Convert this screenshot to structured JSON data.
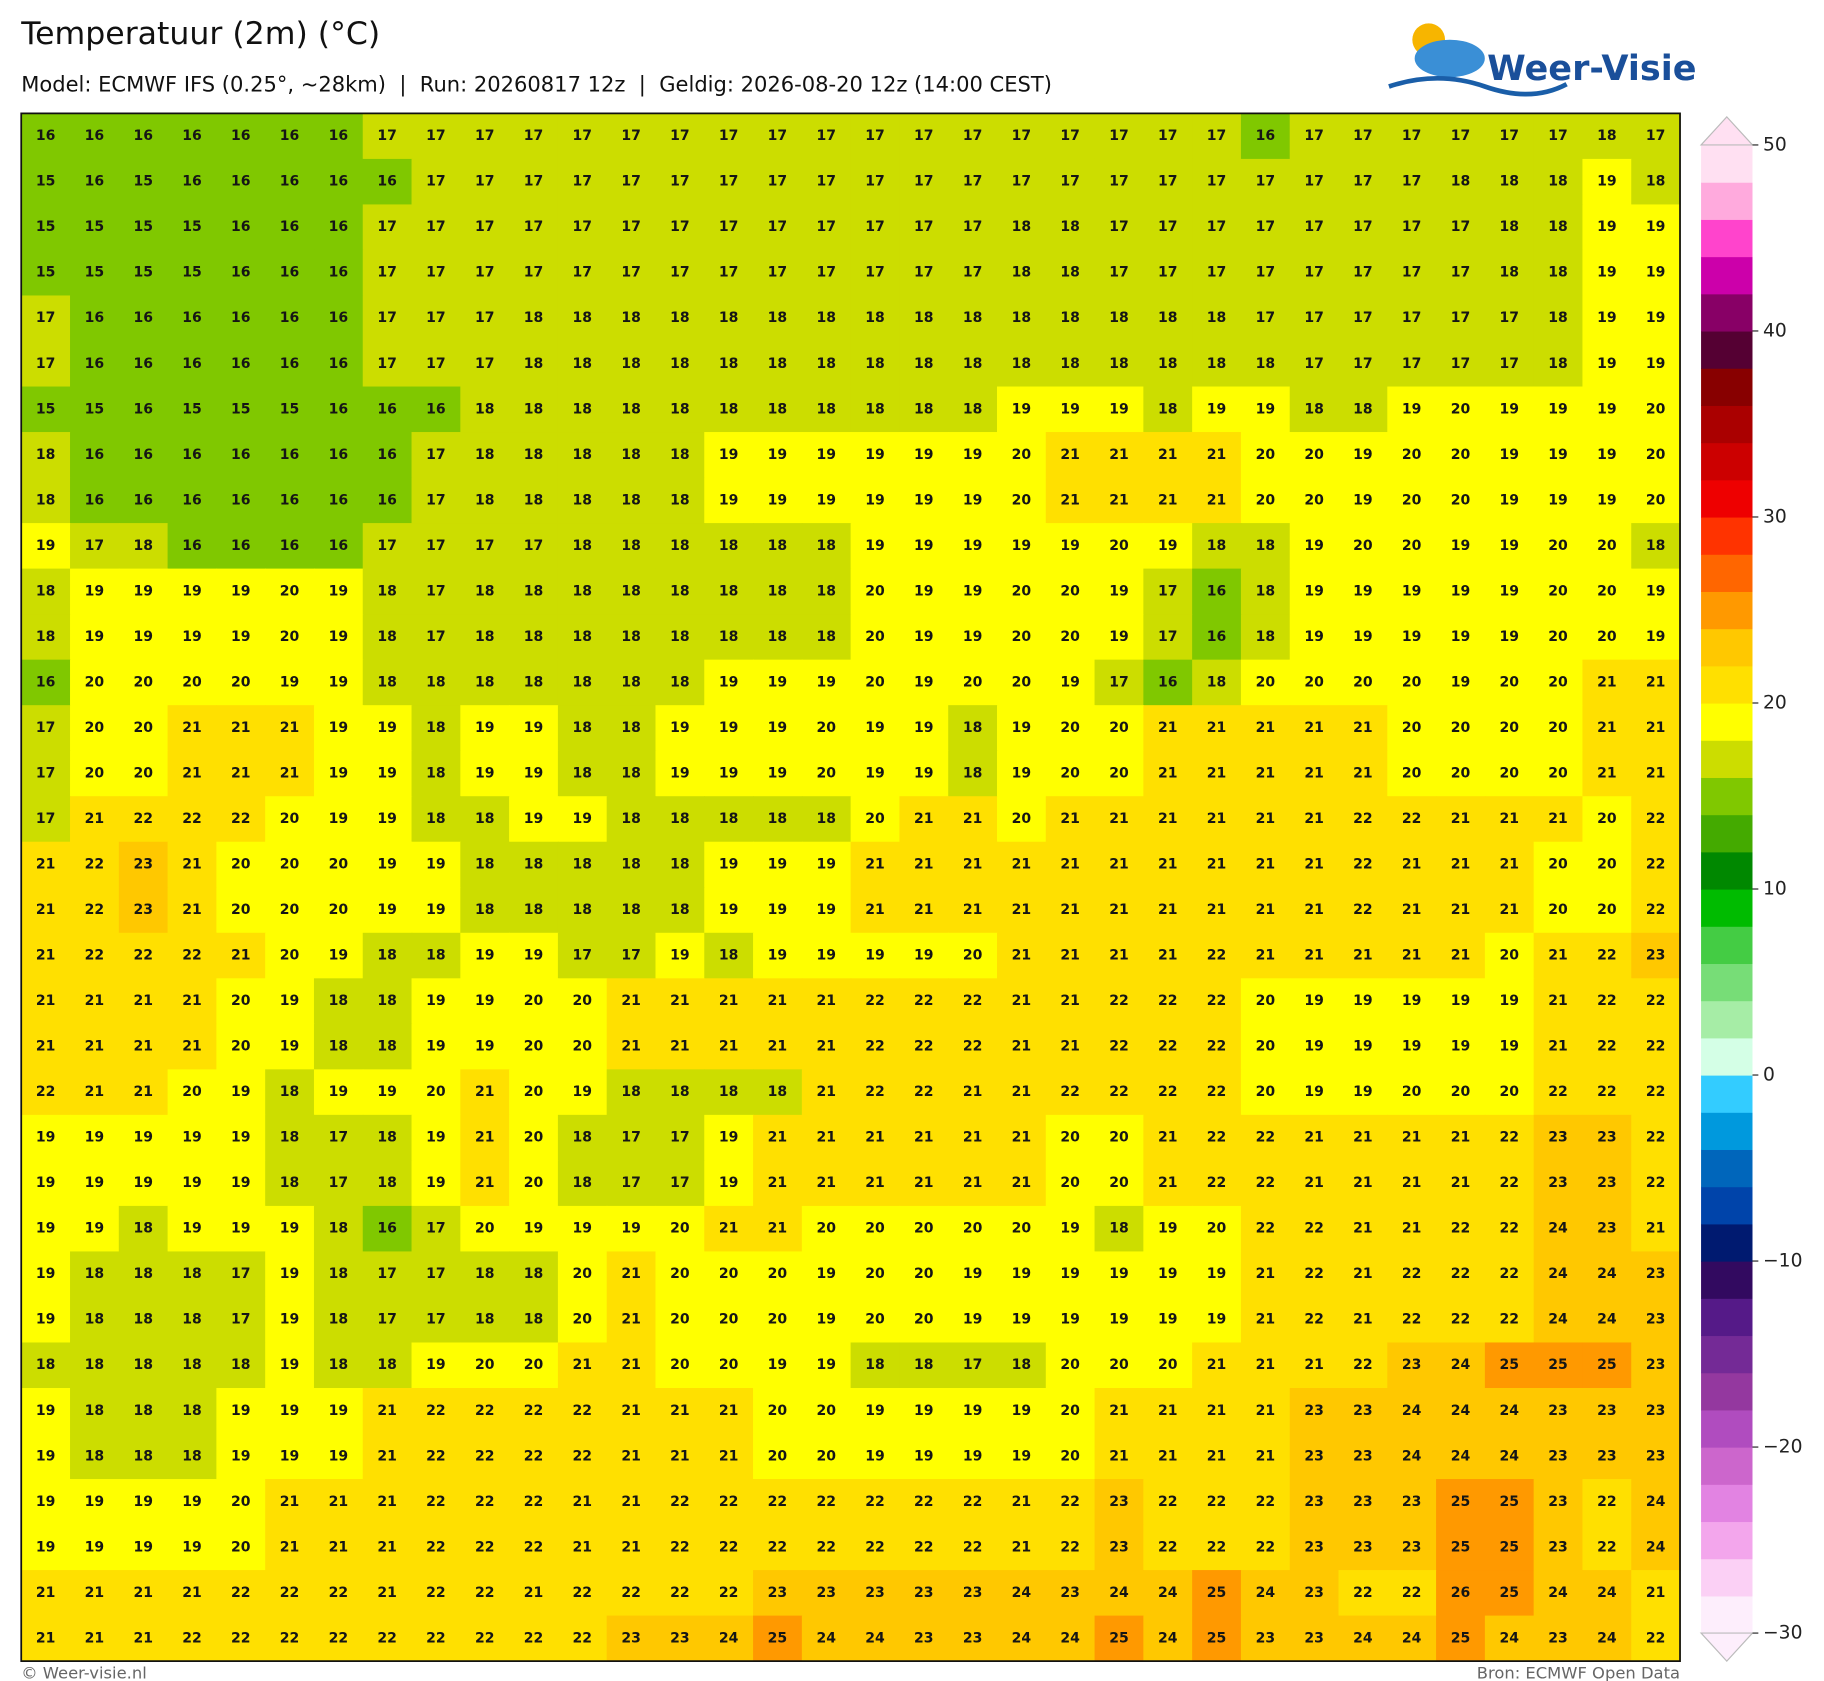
{
  "header": {
    "title": "Temperatuur (2m) (°C)",
    "subtitle": "Model: ECMWF IFS (0.25°, ~28km)  |  Run: 20260817 12z  |  Geldig: 2026-08-20 12z (14:00 CEST)",
    "logo": "Weer-Visie"
  },
  "map": {
    "grid": [
      [
        16,
        16,
        16,
        16,
        16,
        16,
        16,
        17,
        17,
        17,
        17,
        17,
        17,
        17,
        17,
        17,
        17,
        17,
        17,
        17,
        17,
        17,
        17,
        17,
        17,
        16,
        17,
        17,
        17,
        17,
        17,
        17,
        18,
        17
      ],
      [
        15,
        16,
        15,
        16,
        16,
        16,
        16,
        16,
        17,
        17,
        17,
        17,
        17,
        17,
        17,
        17,
        17,
        17,
        17,
        17,
        17,
        17,
        17,
        17,
        17,
        17,
        17,
        17,
        17,
        18,
        18,
        18,
        19,
        18
      ],
      [
        15,
        15,
        15,
        15,
        16,
        16,
        16,
        17,
        17,
        17,
        17,
        17,
        17,
        17,
        17,
        17,
        17,
        17,
        17,
        17,
        18,
        18,
        17,
        17,
        17,
        17,
        17,
        17,
        17,
        17,
        18,
        18,
        19,
        19
      ],
      [
        15,
        15,
        15,
        15,
        16,
        16,
        16,
        17,
        17,
        17,
        17,
        17,
        17,
        17,
        17,
        17,
        17,
        17,
        17,
        17,
        18,
        18,
        17,
        17,
        17,
        17,
        17,
        17,
        17,
        17,
        18,
        18,
        19,
        19
      ],
      [
        17,
        16,
        16,
        16,
        16,
        16,
        16,
        17,
        17,
        17,
        18,
        18,
        18,
        18,
        18,
        18,
        18,
        18,
        18,
        18,
        18,
        18,
        18,
        18,
        18,
        17,
        17,
        17,
        17,
        17,
        17,
        18,
        19,
        19
      ],
      [
        17,
        16,
        16,
        16,
        16,
        16,
        16,
        17,
        17,
        17,
        18,
        18,
        18,
        18,
        18,
        18,
        18,
        18,
        18,
        18,
        18,
        18,
        18,
        18,
        18,
        18,
        17,
        17,
        17,
        17,
        17,
        18,
        19,
        19
      ],
      [
        15,
        15,
        16,
        15,
        15,
        15,
        16,
        16,
        16,
        18,
        18,
        18,
        18,
        18,
        18,
        18,
        18,
        18,
        18,
        18,
        19,
        19,
        19,
        18,
        19,
        19,
        18,
        18,
        19,
        20,
        19,
        19,
        19,
        20
      ],
      [
        18,
        16,
        16,
        16,
        16,
        16,
        16,
        16,
        17,
        18,
        18,
        18,
        18,
        18,
        19,
        19,
        19,
        19,
        19,
        19,
        20,
        21,
        21,
        21,
        21,
        20,
        20,
        19,
        20,
        20,
        19,
        19,
        19,
        20
      ],
      [
        18,
        16,
        16,
        16,
        16,
        16,
        16,
        16,
        17,
        18,
        18,
        18,
        18,
        18,
        19,
        19,
        19,
        19,
        19,
        19,
        20,
        21,
        21,
        21,
        21,
        20,
        20,
        19,
        20,
        20,
        19,
        19,
        19,
        20
      ],
      [
        19,
        17,
        18,
        16,
        16,
        16,
        16,
        17,
        17,
        17,
        17,
        18,
        18,
        18,
        18,
        18,
        18,
        19,
        19,
        19,
        19,
        19,
        20,
        19,
        18,
        18,
        19,
        20,
        20,
        19,
        19,
        20,
        20,
        18
      ],
      [
        18,
        19,
        19,
        19,
        19,
        20,
        19,
        18,
        17,
        18,
        18,
        18,
        18,
        18,
        18,
        18,
        18,
        20,
        19,
        19,
        20,
        20,
        19,
        17,
        16,
        18,
        19,
        19,
        19,
        19,
        19,
        20,
        20,
        19
      ],
      [
        18,
        19,
        19,
        19,
        19,
        20,
        19,
        18,
        17,
        18,
        18,
        18,
        18,
        18,
        18,
        18,
        18,
        20,
        19,
        19,
        20,
        20,
        19,
        17,
        16,
        18,
        19,
        19,
        19,
        19,
        19,
        20,
        20,
        19
      ],
      [
        16,
        20,
        20,
        20,
        20,
        19,
        19,
        18,
        18,
        18,
        18,
        18,
        18,
        18,
        19,
        19,
        19,
        20,
        19,
        20,
        20,
        19,
        17,
        16,
        18,
        20,
        20,
        20,
        20,
        19,
        20,
        20,
        21,
        21
      ],
      [
        17,
        20,
        20,
        21,
        21,
        21,
        19,
        19,
        18,
        19,
        19,
        18,
        18,
        19,
        19,
        19,
        20,
        19,
        19,
        18,
        19,
        20,
        20,
        21,
        21,
        21,
        21,
        21,
        20,
        20,
        20,
        20,
        21,
        21
      ],
      [
        17,
        20,
        20,
        21,
        21,
        21,
        19,
        19,
        18,
        19,
        19,
        18,
        18,
        19,
        19,
        19,
        20,
        19,
        19,
        18,
        19,
        20,
        20,
        21,
        21,
        21,
        21,
        21,
        20,
        20,
        20,
        20,
        21,
        21
      ],
      [
        17,
        21,
        22,
        22,
        22,
        20,
        19,
        19,
        18,
        18,
        19,
        19,
        18,
        18,
        18,
        18,
        18,
        20,
        21,
        21,
        20,
        21,
        21,
        21,
        21,
        21,
        21,
        22,
        22,
        21,
        21,
        21,
        20,
        22
      ],
      [
        21,
        22,
        23,
        21,
        20,
        20,
        20,
        19,
        19,
        18,
        18,
        18,
        18,
        18,
        19,
        19,
        19,
        21,
        21,
        21,
        21,
        21,
        21,
        21,
        21,
        21,
        21,
        22,
        21,
        21,
        21,
        20,
        20,
        22
      ],
      [
        21,
        22,
        23,
        21,
        20,
        20,
        20,
        19,
        19,
        18,
        18,
        18,
        18,
        18,
        19,
        19,
        19,
        21,
        21,
        21,
        21,
        21,
        21,
        21,
        21,
        21,
        21,
        22,
        21,
        21,
        21,
        20,
        20,
        22
      ],
      [
        21,
        22,
        22,
        22,
        21,
        20,
        19,
        18,
        18,
        19,
        19,
        17,
        17,
        19,
        18,
        19,
        19,
        19,
        19,
        20,
        21,
        21,
        21,
        21,
        22,
        21,
        21,
        21,
        21,
        21,
        20,
        21,
        22,
        23
      ],
      [
        21,
        21,
        21,
        21,
        20,
        19,
        18,
        18,
        19,
        19,
        20,
        20,
        21,
        21,
        21,
        21,
        21,
        22,
        22,
        22,
        21,
        21,
        22,
        22,
        22,
        20,
        19,
        19,
        19,
        19,
        19,
        21,
        22,
        22
      ],
      [
        21,
        21,
        21,
        21,
        20,
        19,
        18,
        18,
        19,
        19,
        20,
        20,
        21,
        21,
        21,
        21,
        21,
        22,
        22,
        22,
        21,
        21,
        22,
        22,
        22,
        20,
        19,
        19,
        19,
        19,
        19,
        21,
        22,
        22
      ],
      [
        22,
        21,
        21,
        20,
        19,
        18,
        19,
        19,
        20,
        21,
        20,
        19,
        18,
        18,
        18,
        18,
        21,
        22,
        22,
        21,
        21,
        22,
        22,
        22,
        22,
        20,
        19,
        19,
        20,
        20,
        20,
        22,
        22,
        22
      ],
      [
        19,
        19,
        19,
        19,
        19,
        18,
        17,
        18,
        19,
        21,
        20,
        18,
        17,
        17,
        19,
        21,
        21,
        21,
        21,
        21,
        21,
        20,
        20,
        21,
        22,
        22,
        21,
        21,
        21,
        21,
        22,
        23,
        23,
        22
      ],
      [
        19,
        19,
        19,
        19,
        19,
        18,
        17,
        18,
        19,
        21,
        20,
        18,
        17,
        17,
        19,
        21,
        21,
        21,
        21,
        21,
        21,
        20,
        20,
        21,
        22,
        22,
        21,
        21,
        21,
        21,
        22,
        23,
        23,
        22
      ],
      [
        19,
        19,
        18,
        19,
        19,
        19,
        18,
        16,
        17,
        20,
        19,
        19,
        19,
        20,
        21,
        21,
        20,
        20,
        20,
        20,
        20,
        19,
        18,
        19,
        20,
        22,
        22,
        21,
        21,
        22,
        22,
        24,
        23,
        21
      ],
      [
        19,
        18,
        18,
        18,
        17,
        19,
        18,
        17,
        17,
        18,
        18,
        20,
        21,
        20,
        20,
        20,
        19,
        20,
        20,
        19,
        19,
        19,
        19,
        19,
        19,
        21,
        22,
        21,
        22,
        22,
        22,
        24,
        24,
        23
      ],
      [
        19,
        18,
        18,
        18,
        17,
        19,
        18,
        17,
        17,
        18,
        18,
        20,
        21,
        20,
        20,
        20,
        19,
        20,
        20,
        19,
        19,
        19,
        19,
        19,
        19,
        21,
        22,
        21,
        22,
        22,
        22,
        24,
        24,
        23
      ],
      [
        18,
        18,
        18,
        18,
        18,
        19,
        18,
        18,
        19,
        20,
        20,
        21,
        21,
        20,
        20,
        19,
        19,
        18,
        18,
        17,
        18,
        20,
        20,
        20,
        21,
        21,
        21,
        22,
        23,
        24,
        25,
        25,
        25,
        23
      ],
      [
        19,
        18,
        18,
        18,
        19,
        19,
        19,
        21,
        22,
        22,
        22,
        22,
        21,
        21,
        21,
        20,
        20,
        19,
        19,
        19,
        19,
        20,
        21,
        21,
        21,
        21,
        23,
        23,
        24,
        24,
        24,
        23,
        23,
        23
      ],
      [
        19,
        18,
        18,
        18,
        19,
        19,
        19,
        21,
        22,
        22,
        22,
        22,
        21,
        21,
        21,
        20,
        20,
        19,
        19,
        19,
        19,
        20,
        21,
        21,
        21,
        21,
        23,
        23,
        24,
        24,
        24,
        23,
        23,
        23
      ],
      [
        19,
        19,
        19,
        19,
        20,
        21,
        21,
        21,
        22,
        22,
        22,
        21,
        21,
        22,
        22,
        22,
        22,
        22,
        22,
        22,
        21,
        22,
        23,
        22,
        22,
        22,
        23,
        23,
        23,
        25,
        25,
        23,
        22,
        24
      ],
      [
        19,
        19,
        19,
        19,
        20,
        21,
        21,
        21,
        22,
        22,
        22,
        21,
        21,
        22,
        22,
        22,
        22,
        22,
        22,
        22,
        21,
        22,
        23,
        22,
        22,
        22,
        23,
        23,
        23,
        25,
        25,
        23,
        22,
        24
      ],
      [
        21,
        21,
        21,
        21,
        22,
        22,
        22,
        21,
        22,
        22,
        21,
        22,
        22,
        22,
        22,
        23,
        23,
        23,
        23,
        23,
        24,
        23,
        24,
        24,
        25,
        24,
        23,
        22,
        22,
        26,
        25,
        24,
        24,
        21
      ],
      [
        21,
        21,
        21,
        22,
        22,
        22,
        22,
        22,
        22,
        22,
        22,
        22,
        23,
        23,
        24,
        25,
        24,
        24,
        23,
        23,
        24,
        24,
        25,
        24,
        25,
        23,
        23,
        24,
        24,
        25,
        24,
        23,
        24,
        22
      ]
    ]
  },
  "colorbar": {
    "range": [
      -30,
      50
    ],
    "ticks": [
      50,
      40,
      30,
      20,
      10,
      0,
      {
        "value": -10,
        "label": "−10"
      },
      {
        "value": -20,
        "label": "−20"
      },
      {
        "value": -30,
        "label": "−30"
      }
    ],
    "colors": [
      "#fdeefc",
      "#fbd0f5",
      "#f3a6ec",
      "#e283e2",
      "#cc66cc",
      "#b04cbf",
      "#94389f",
      "#742a96",
      "#551a88",
      "#320a60",
      "#001a70",
      "#0044aa",
      "#0066bb",
      "#0099dd",
      "#33ccff",
      "#d4ffe6",
      "#a6eda6",
      "#77dd77",
      "#44cc44",
      "#00bb00",
      "#008800",
      "#44aa00",
      "#80c800",
      "#ccdd00",
      "#ffff00",
      "#ffe000",
      "#ffc800",
      "#ff9900",
      "#ff6600",
      "#ff3300",
      "#ee0000",
      "#cc0000",
      "#aa0000",
      "#880000",
      "#550033",
      "#880066",
      "#cc00aa",
      "#ff44cc",
      "#ffaadd",
      "#ffe0f2"
    ]
  },
  "footer": {
    "credit": "© Weer-visie.nl",
    "source": "Bron: ECMWF Open Data"
  }
}
